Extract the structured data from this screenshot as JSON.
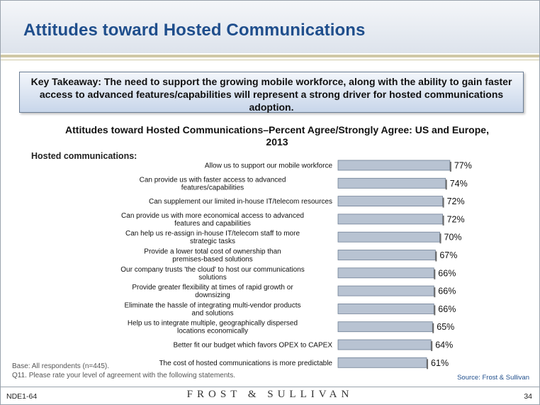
{
  "slide": {
    "title": "Attitudes toward Hosted Communications",
    "key_takeaway": "Key Takeaway: The need to support the growing mobile workforce, along with the ability to gain faster access to advanced features/capabilities will represent a strong driver for hosted communications adoption.",
    "section_label": "Hosted communications:",
    "base_note": "Base: All respondents (n=445).",
    "question_note": "Q11. Please rate your level of agreement with the following statements.",
    "source": "Source: Frost & Sullivan",
    "footer_code": "NDE1-64",
    "brand": "FROST & SULLIVAN",
    "page_number": "34"
  },
  "chart_data": {
    "type": "bar",
    "orientation": "horizontal",
    "title": "Attitudes toward Hosted Communications–Percent Agree/Strongly Agree: US and Europe, 2013",
    "categories": [
      "Allow us to support our mobile workforce",
      "Can provide us with faster access to advanced features/capabilities",
      "Can supplement our limited in-house IT/telecom resources",
      "Can provide us with more economical access to advanced features and capabilities",
      "Can help us re-assign in-house IT/telecom staff to more strategic tasks",
      "Provide a lower total cost of ownership than premises-based solutions",
      "Our company trusts 'the cloud' to host our communications solutions",
      "Provide greater flexibility at times of rapid growth or downsizing",
      "Eliminate the hassle of integrating multi-vendor products and solutions",
      "Help us to integrate multiple, geographically dispersed locations economically",
      "Better fit our budget which favors OPEX to CAPEX",
      "The cost of hosted communications is more predictable"
    ],
    "values": [
      77,
      74,
      72,
      72,
      70,
      67,
      66,
      66,
      66,
      65,
      64,
      61
    ],
    "value_labels": [
      "77%",
      "74%",
      "72%",
      "72%",
      "70%",
      "67%",
      "66%",
      "66%",
      "66%",
      "65%",
      "64%",
      "61%"
    ],
    "unit": "%",
    "bar_color": "#b8c3d2"
  }
}
